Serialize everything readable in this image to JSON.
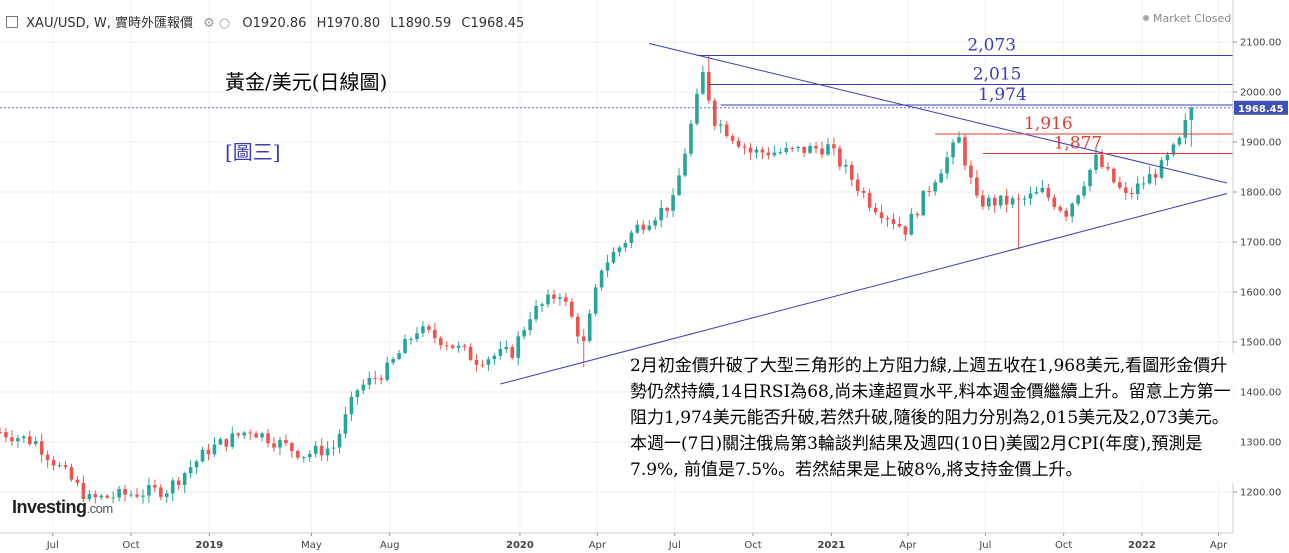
{
  "header": {
    "symbol": "XAU/USD, W, 實時外匯報價",
    "open": "O1920.86",
    "high": "H1970.80",
    "low": "L1890.59",
    "close": "C1968.45",
    "status": "Market Closed"
  },
  "annotations": {
    "title": "黃金/美元(日線圖)",
    "figure": "[圖三]",
    "commentary": "2月初金價升破了大型三角形的上方阻力線,上週五收在1,968美元,看圖形金價升勢仍然持續,14日RSI為68,尚未達超買水平,料本週金價繼續上升。留意上方第一阻力1,974美元能否升破,若然升破,隨後的阻力分別為2,015美元及2,073美元。本週一(7日)關注俄烏第3輪談判結果及週四(10日)美國2月CPI(年度),預測是7.9%, 前值是7.5%。若然結果是上破8%,將支持金價上升。"
  },
  "logo": {
    "text": "Investing",
    "suffix": ".com"
  },
  "colors": {
    "up": "#26a69a",
    "down": "#ef5350",
    "line": "#3b3db8",
    "red_line": "#e53935"
  },
  "chart_data": {
    "type": "candlestick",
    "timeframe": "W",
    "ylim": [
      1140,
      2120
    ],
    "yticks": [
      1200,
      1300,
      1400,
      1500,
      1600,
      1700,
      1800,
      1900,
      2000,
      2100
    ],
    "ytick_labels": [
      "1200.00",
      "1300.00",
      "1400.00",
      "1500.00",
      "1600.00",
      "1700.00",
      "1800.00",
      "1900.00",
      "2000.00",
      "2100.00"
    ],
    "x_start": "2018-04-30",
    "x_end": "2022-04-18",
    "xticks": [
      {
        "date": "2018-07-01",
        "label": "Jul"
      },
      {
        "date": "2018-10-01",
        "label": "Oct"
      },
      {
        "date": "2019-01-01",
        "label": "2019"
      },
      {
        "date": "2019-05-01",
        "label": "May"
      },
      {
        "date": "2019-08-01",
        "label": "Aug"
      },
      {
        "date": "2020-01-01",
        "label": "2020"
      },
      {
        "date": "2020-04-01",
        "label": "Apr"
      },
      {
        "date": "2020-07-01",
        "label": "Jul"
      },
      {
        "date": "2020-10-01",
        "label": "Oct"
      },
      {
        "date": "2021-01-01",
        "label": "2021"
      },
      {
        "date": "2021-04-01",
        "label": "Apr"
      },
      {
        "date": "2021-07-01",
        "label": "Jul"
      },
      {
        "date": "2021-10-01",
        "label": "Oct"
      },
      {
        "date": "2022-01-01",
        "label": "2022"
      },
      {
        "date": "2022-04-01",
        "label": "Apr"
      }
    ],
    "last_price": 1968.45,
    "last_price_label": "1968.45",
    "anchors": [
      [
        "2018-04-30",
        1320
      ],
      [
        "2018-06-11",
        1300
      ],
      [
        "2018-08-13",
        1185
      ],
      [
        "2018-09-24",
        1195
      ],
      [
        "2018-11-12",
        1205
      ],
      [
        "2018-12-31",
        1285
      ],
      [
        "2019-02-18",
        1325
      ],
      [
        "2019-04-22",
        1275
      ],
      [
        "2019-05-27",
        1290
      ],
      [
        "2019-06-24",
        1405
      ],
      [
        "2019-07-29",
        1445
      ],
      [
        "2019-09-02",
        1525
      ],
      [
        "2019-10-07",
        1500
      ],
      [
        "2019-11-11",
        1465
      ],
      [
        "2019-12-23",
        1480
      ],
      [
        "2020-01-13",
        1555
      ],
      [
        "2020-02-17",
        1600
      ],
      [
        "2020-03-16",
        1495
      ],
      [
        "2020-04-06",
        1650
      ],
      [
        "2020-05-18",
        1730
      ],
      [
        "2020-06-29",
        1780
      ],
      [
        "2020-08-03",
        2035
      ],
      [
        "2020-08-17",
        1945
      ],
      [
        "2020-09-28",
        1880
      ],
      [
        "2020-11-09",
        1880
      ],
      [
        "2020-12-28",
        1890
      ],
      [
        "2021-02-15",
        1780
      ],
      [
        "2021-03-29",
        1725
      ],
      [
        "2021-05-03",
        1830
      ],
      [
        "2021-05-31",
        1905
      ],
      [
        "2021-06-21",
        1780
      ],
      [
        "2021-08-09",
        1780
      ],
      [
        "2021-09-06",
        1800
      ],
      [
        "2021-10-04",
        1760
      ],
      [
        "2021-11-08",
        1865
      ],
      [
        "2021-12-13",
        1790
      ],
      [
        "2022-01-24",
        1850
      ],
      [
        "2022-02-14",
        1900
      ],
      [
        "2022-02-28",
        1968.45
      ]
    ],
    "spikes": [
      {
        "date": "2020-03-16",
        "low": 1450
      },
      {
        "date": "2020-08-10",
        "high": 2075
      },
      {
        "date": "2021-08-09",
        "low": 1685
      }
    ],
    "trendlines": [
      {
        "from": [
          "2020-06-01",
          2097
        ],
        "to": [
          "2022-04-11",
          1818
        ]
      },
      {
        "from": [
          "2019-12-09",
          1416
        ],
        "to": [
          "2022-04-11",
          1797
        ]
      }
    ],
    "levels": [
      {
        "value": 2073,
        "label": "2,073",
        "from": "2020-07-27",
        "color": "blue"
      },
      {
        "value": 2015,
        "label": "2,015",
        "from": "2020-08-10",
        "color": "blue"
      },
      {
        "value": 1974,
        "label": "1,974",
        "from": "2020-08-24",
        "color": "blue"
      },
      {
        "value": 1916,
        "label": "1,916",
        "from": "2021-05-03",
        "color": "red"
      },
      {
        "value": 1877,
        "label": "1,877",
        "from": "2021-06-28",
        "color": "red"
      }
    ]
  }
}
